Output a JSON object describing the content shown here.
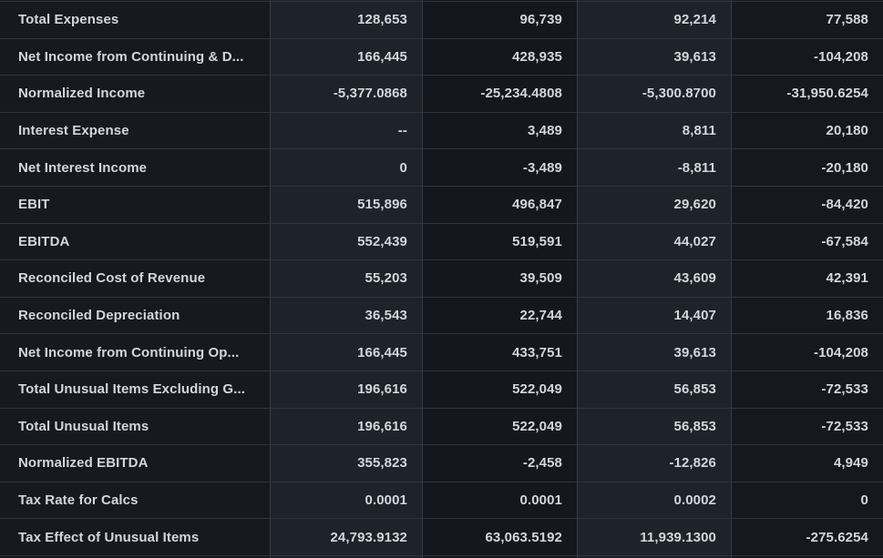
{
  "table": {
    "name": "financials-table",
    "rows": [
      {
        "label": "Total Expenses",
        "values": [
          "128,653",
          "96,739",
          "92,214",
          "77,588"
        ]
      },
      {
        "label": "Net Income from Continuing & D...",
        "values": [
          "166,445",
          "428,935",
          "39,613",
          "-104,208"
        ]
      },
      {
        "label": "Normalized Income",
        "values": [
          "-5,377.0868",
          "-25,234.4808",
          "-5,300.8700",
          "-31,950.6254"
        ]
      },
      {
        "label": "Interest Expense",
        "values": [
          "--",
          "3,489",
          "8,811",
          "20,180"
        ]
      },
      {
        "label": "Net Interest Income",
        "values": [
          "0",
          "-3,489",
          "-8,811",
          "-20,180"
        ]
      },
      {
        "label": "EBIT",
        "values": [
          "515,896",
          "496,847",
          "29,620",
          "-84,420"
        ]
      },
      {
        "label": "EBITDA",
        "values": [
          "552,439",
          "519,591",
          "44,027",
          "-67,584"
        ]
      },
      {
        "label": "Reconciled Cost of Revenue",
        "values": [
          "55,203",
          "39,509",
          "43,609",
          "42,391"
        ]
      },
      {
        "label": "Reconciled Depreciation",
        "values": [
          "36,543",
          "22,744",
          "14,407",
          "16,836"
        ]
      },
      {
        "label": "Net Income from Continuing Op...",
        "values": [
          "166,445",
          "433,751",
          "39,613",
          "-104,208"
        ]
      },
      {
        "label": "Total Unusual Items Excluding G...",
        "values": [
          "196,616",
          "522,049",
          "56,853",
          "-72,533"
        ]
      },
      {
        "label": "Total Unusual Items",
        "values": [
          "196,616",
          "522,049",
          "56,853",
          "-72,533"
        ]
      },
      {
        "label": "Normalized EBITDA",
        "values": [
          "355,823",
          "-2,458",
          "-12,826",
          "4,949"
        ]
      },
      {
        "label": "Tax Rate for Calcs",
        "values": [
          "0.0001",
          "0.0001",
          "0.0002",
          "0"
        ]
      },
      {
        "label": "Tax Effect of Unusual Items",
        "values": [
          "24,793.9132",
          "63,063.5192",
          "11,939.1300",
          "-275.6254"
        ]
      }
    ]
  },
  "colors": {
    "page_background": "#0c0e12",
    "dark_column": "#15181e",
    "light_column": "#1e222a",
    "label_column": "#16191f",
    "row_border": "#2e3540",
    "column_border": "#373e49",
    "text": "#d3d6da"
  }
}
